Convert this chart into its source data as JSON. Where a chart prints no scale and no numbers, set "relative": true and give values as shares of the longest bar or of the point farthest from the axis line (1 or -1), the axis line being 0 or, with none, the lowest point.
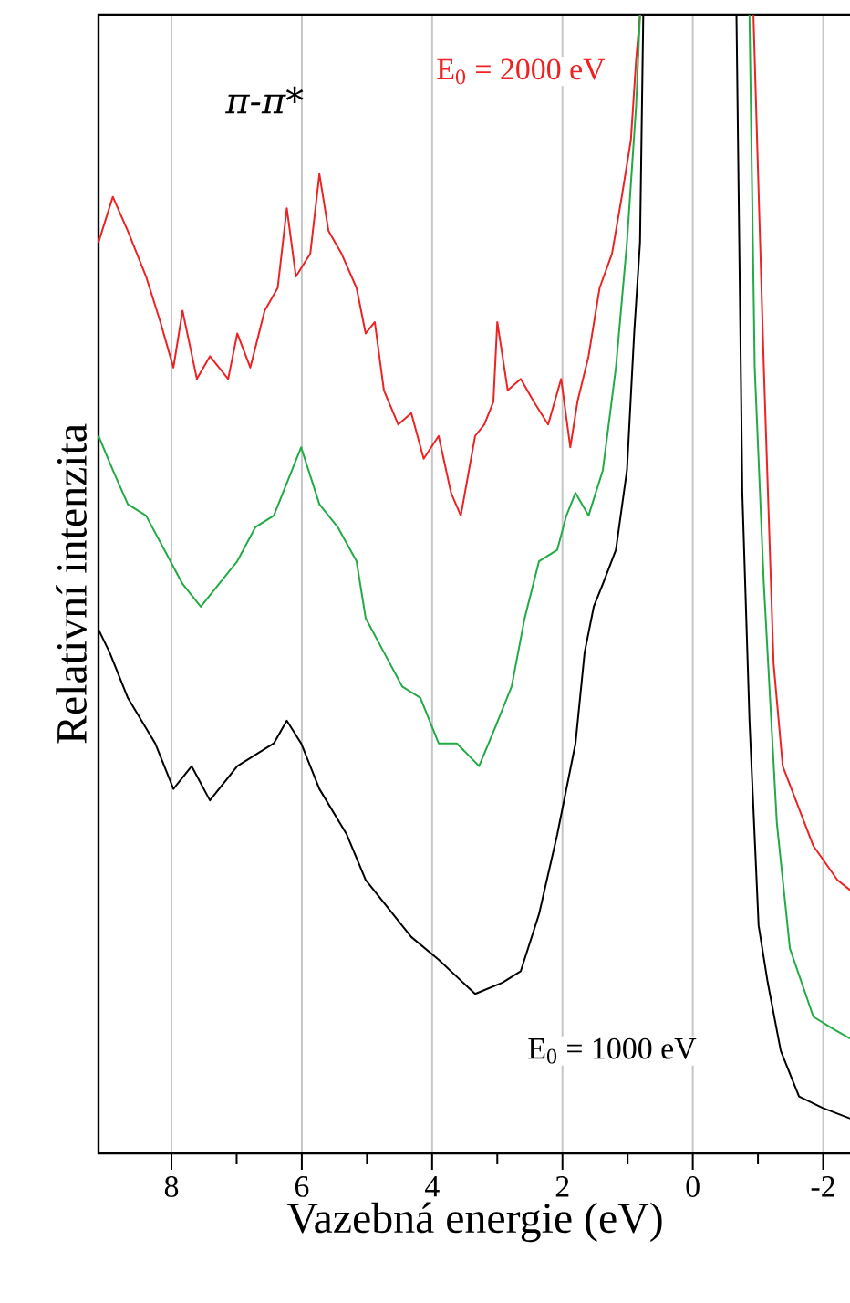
{
  "chart_data": {
    "type": "line",
    "xlabel": "Vazebná energie (eV)",
    "ylabel": "Relativní intenzita",
    "relative": true,
    "grid": "x",
    "marker": "none",
    "line_style": "solid",
    "xlim": [
      9.12,
      -2.44
    ],
    "xticks": [
      8,
      {
        "value": 7,
        "label": null
      },
      6,
      {
        "value": 5,
        "label": null
      },
      4,
      {
        "value": 3,
        "label": null
      },
      2,
      {
        "value": 1,
        "label": null
      },
      0,
      {
        "value": -1,
        "label": null
      },
      -2
    ],
    "annotations": [
      "π-π*"
    ],
    "series": [
      {
        "name": "E$_{0}$ = 2000 eV",
        "color": "#ee2222",
        "x": [
          9.12,
          8.9,
          8.67,
          8.39,
          8.17,
          7.97,
          7.83,
          7.61,
          7.41,
          7.13,
          6.99,
          6.79,
          6.57,
          6.37,
          6.23,
          6.09,
          5.87,
          5.73,
          5.59,
          5.39,
          5.16,
          5.02,
          4.88,
          4.74,
          4.52,
          4.32,
          4.13,
          3.9,
          3.71,
          3.56,
          3.34,
          3.2,
          3.06,
          3.0,
          2.84,
          2.64,
          2.44,
          2.22,
          2.02,
          1.88,
          1.77,
          1.6,
          1.43,
          1.24,
          1.09,
          0.95,
          0.87,
          0.81,
          0,
          -0.93,
          -1.09,
          -1.24,
          -1.38,
          -1.85,
          -2.22,
          -2.44
        ],
        "values": [
          0.8,
          0.84,
          0.81,
          0.77,
          0.73,
          0.69,
          0.74,
          0.68,
          0.7,
          0.68,
          0.72,
          0.69,
          0.74,
          0.76,
          0.83,
          0.77,
          0.79,
          0.86,
          0.81,
          0.79,
          0.76,
          0.72,
          0.73,
          0.67,
          0.64,
          0.65,
          0.61,
          0.63,
          0.58,
          0.56,
          0.63,
          0.64,
          0.66,
          0.73,
          0.67,
          0.68,
          0.66,
          0.64,
          0.68,
          0.62,
          0.66,
          0.7,
          0.76,
          0.79,
          0.84,
          0.89,
          0.96,
          1,
          null,
          1,
          0.69,
          0.43,
          0.34,
          0.27,
          0.24,
          0.23
        ]
      },
      {
        "color": "#22aa44",
        "x": [
          9.12,
          8.9,
          8.67,
          8.39,
          8.11,
          7.83,
          7.55,
          7.27,
          6.99,
          6.71,
          6.43,
          6.01,
          5.73,
          5.45,
          5.16,
          5.02,
          4.74,
          4.46,
          4.18,
          3.9,
          3.62,
          3.28,
          3.06,
          2.78,
          2.58,
          2.36,
          2.08,
          1.94,
          1.8,
          1.6,
          1.38,
          1.18,
          1.01,
          0.87,
          0.81,
          0,
          -0.87,
          -0.95,
          -1.09,
          -1.29,
          -1.49,
          -1.85,
          -2.13,
          -2.44
        ],
        "values": [
          0.63,
          0.6,
          0.57,
          0.56,
          0.53,
          0.5,
          0.48,
          0.5,
          0.52,
          0.55,
          0.56,
          0.62,
          0.57,
          0.55,
          0.52,
          0.47,
          0.44,
          0.41,
          0.4,
          0.36,
          0.36,
          0.34,
          0.37,
          0.41,
          0.47,
          0.52,
          0.53,
          0.56,
          0.58,
          0.56,
          0.6,
          0.69,
          0.8,
          0.92,
          1,
          null,
          1,
          0.69,
          0.5,
          0.29,
          0.18,
          0.12,
          0.11,
          0.1
        ]
      },
      {
        "name": "E$_{0}$ = 1000 eV",
        "color": "#000000",
        "x": [
          9.12,
          8.95,
          8.67,
          8.25,
          7.97,
          7.69,
          7.41,
          6.99,
          6.43,
          6.23,
          6.01,
          5.73,
          5.31,
          5.02,
          4.74,
          4.32,
          3.9,
          3.34,
          2.92,
          2.64,
          2.36,
          2.08,
          1.8,
          1.66,
          1.52,
          1.38,
          1.18,
          1.01,
          0.9,
          0.81,
          0.76,
          0,
          -0.67,
          -0.7,
          -0.76,
          -0.87,
          -1.01,
          -1.15,
          -1.35,
          -1.63,
          -1.99,
          -2.44
        ],
        "values": [
          0.46,
          0.44,
          0.4,
          0.36,
          0.32,
          0.34,
          0.31,
          0.34,
          0.36,
          0.38,
          0.36,
          0.32,
          0.28,
          0.24,
          0.22,
          0.19,
          0.17,
          0.14,
          0.15,
          0.16,
          0.21,
          0.28,
          0.36,
          0.44,
          0.48,
          0.5,
          0.53,
          0.6,
          0.72,
          0.8,
          1,
          null,
          1,
          0.86,
          0.58,
          0.38,
          0.2,
          0.15,
          0.09,
          0.05,
          0.04,
          0.03
        ]
      }
    ]
  }
}
